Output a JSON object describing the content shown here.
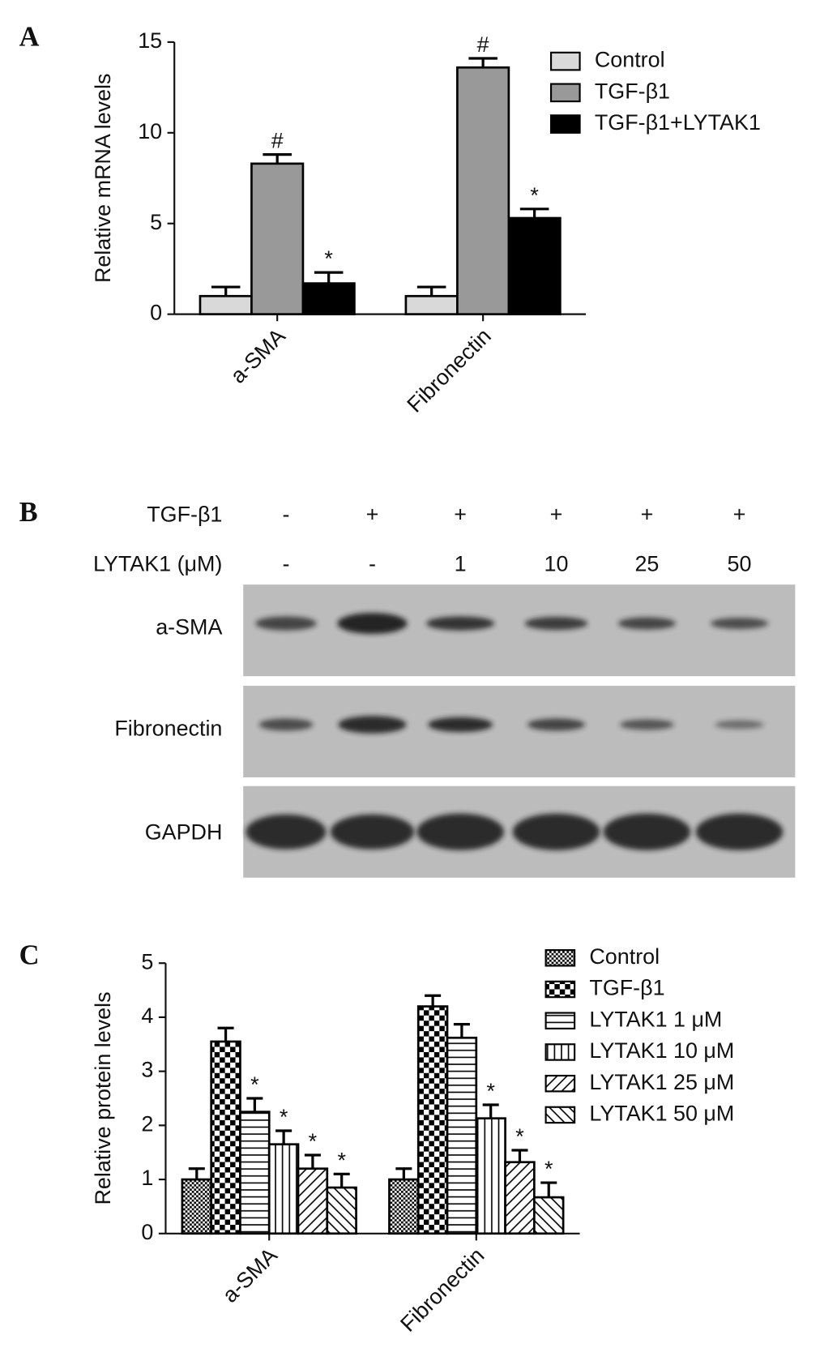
{
  "chart_data": [
    {
      "type": "bar",
      "panel_label": "A",
      "ylabel": "Relative mRNA levels",
      "categories": [
        "a-SMA",
        "Fibronectin"
      ],
      "series": [
        {
          "name": "Control",
          "color": "#d9d9d9",
          "values": [
            1,
            1
          ],
          "errors": [
            0.5,
            0.5
          ],
          "annotations": [
            null,
            null
          ]
        },
        {
          "name": "TGF-β1",
          "color": "#999999",
          "values": [
            8.3,
            13.6
          ],
          "errors": [
            0.5,
            0.5
          ],
          "annotations": [
            "#",
            "#"
          ]
        },
        {
          "name": "TGF-β1+LYTAK1",
          "color": "#000000",
          "values": [
            1.7,
            5.3
          ],
          "errors": [
            0.6,
            0.5
          ],
          "annotations": [
            "*",
            "*"
          ]
        }
      ],
      "ylim": [
        0,
        15
      ],
      "yticks": [
        0,
        5,
        10,
        15
      ],
      "legend": "upper right"
    },
    {
      "type": "bar",
      "panel_label": "C",
      "ylabel": "Relative protein levels",
      "categories": [
        "a-SMA",
        "Fibronectin"
      ],
      "series": [
        {
          "name": "Control",
          "color": "#000000",
          "pattern": "dots",
          "values": [
            1.0,
            1.0
          ],
          "errors": [
            0.2,
            0.2
          ],
          "annotations": [
            null,
            null
          ]
        },
        {
          "name": "TGF-β1",
          "color": "#000000",
          "pattern": "checker",
          "values": [
            3.55,
            4.2
          ],
          "errors": [
            0.25,
            0.2
          ],
          "annotations": [
            null,
            null
          ]
        },
        {
          "name": "LYTAK1 1 μM",
          "color": "#000000",
          "pattern": "hlines",
          "values": [
            2.25,
            3.62
          ],
          "errors": [
            0.25,
            0.25
          ],
          "annotations": [
            "*",
            null
          ]
        },
        {
          "name": "LYTAK1 10 μM",
          "color": "#000000",
          "pattern": "vlines",
          "values": [
            1.65,
            2.13
          ],
          "errors": [
            0.25,
            0.25
          ],
          "annotations": [
            "*",
            "*"
          ]
        },
        {
          "name": "LYTAK1 25 μM",
          "color": "#000000",
          "pattern": "diag",
          "values": [
            1.2,
            1.32
          ],
          "errors": [
            0.25,
            0.22
          ],
          "annotations": [
            "*",
            "*"
          ]
        },
        {
          "name": "LYTAK1 50 μM",
          "color": "#000000",
          "pattern": "diag2",
          "values": [
            0.85,
            0.67
          ],
          "errors": [
            0.25,
            0.27
          ],
          "annotations": [
            "*",
            "*"
          ]
        }
      ],
      "ylim": [
        0,
        5
      ],
      "yticks": [
        0,
        1,
        2,
        3,
        4,
        5
      ],
      "legend": "upper right"
    }
  ],
  "blot": {
    "panel_label": "B",
    "conditions": [
      {
        "label": "TGF-β1",
        "lanes": [
          "-",
          "+",
          "+",
          "+",
          "+",
          "+"
        ]
      },
      {
        "label": "LYTAK1 (μM)",
        "lanes": [
          "-",
          "-",
          "1",
          "10",
          "25",
          "50"
        ]
      }
    ],
    "rows": [
      "a-SMA",
      "Fibronectin",
      "GAPDH"
    ]
  }
}
